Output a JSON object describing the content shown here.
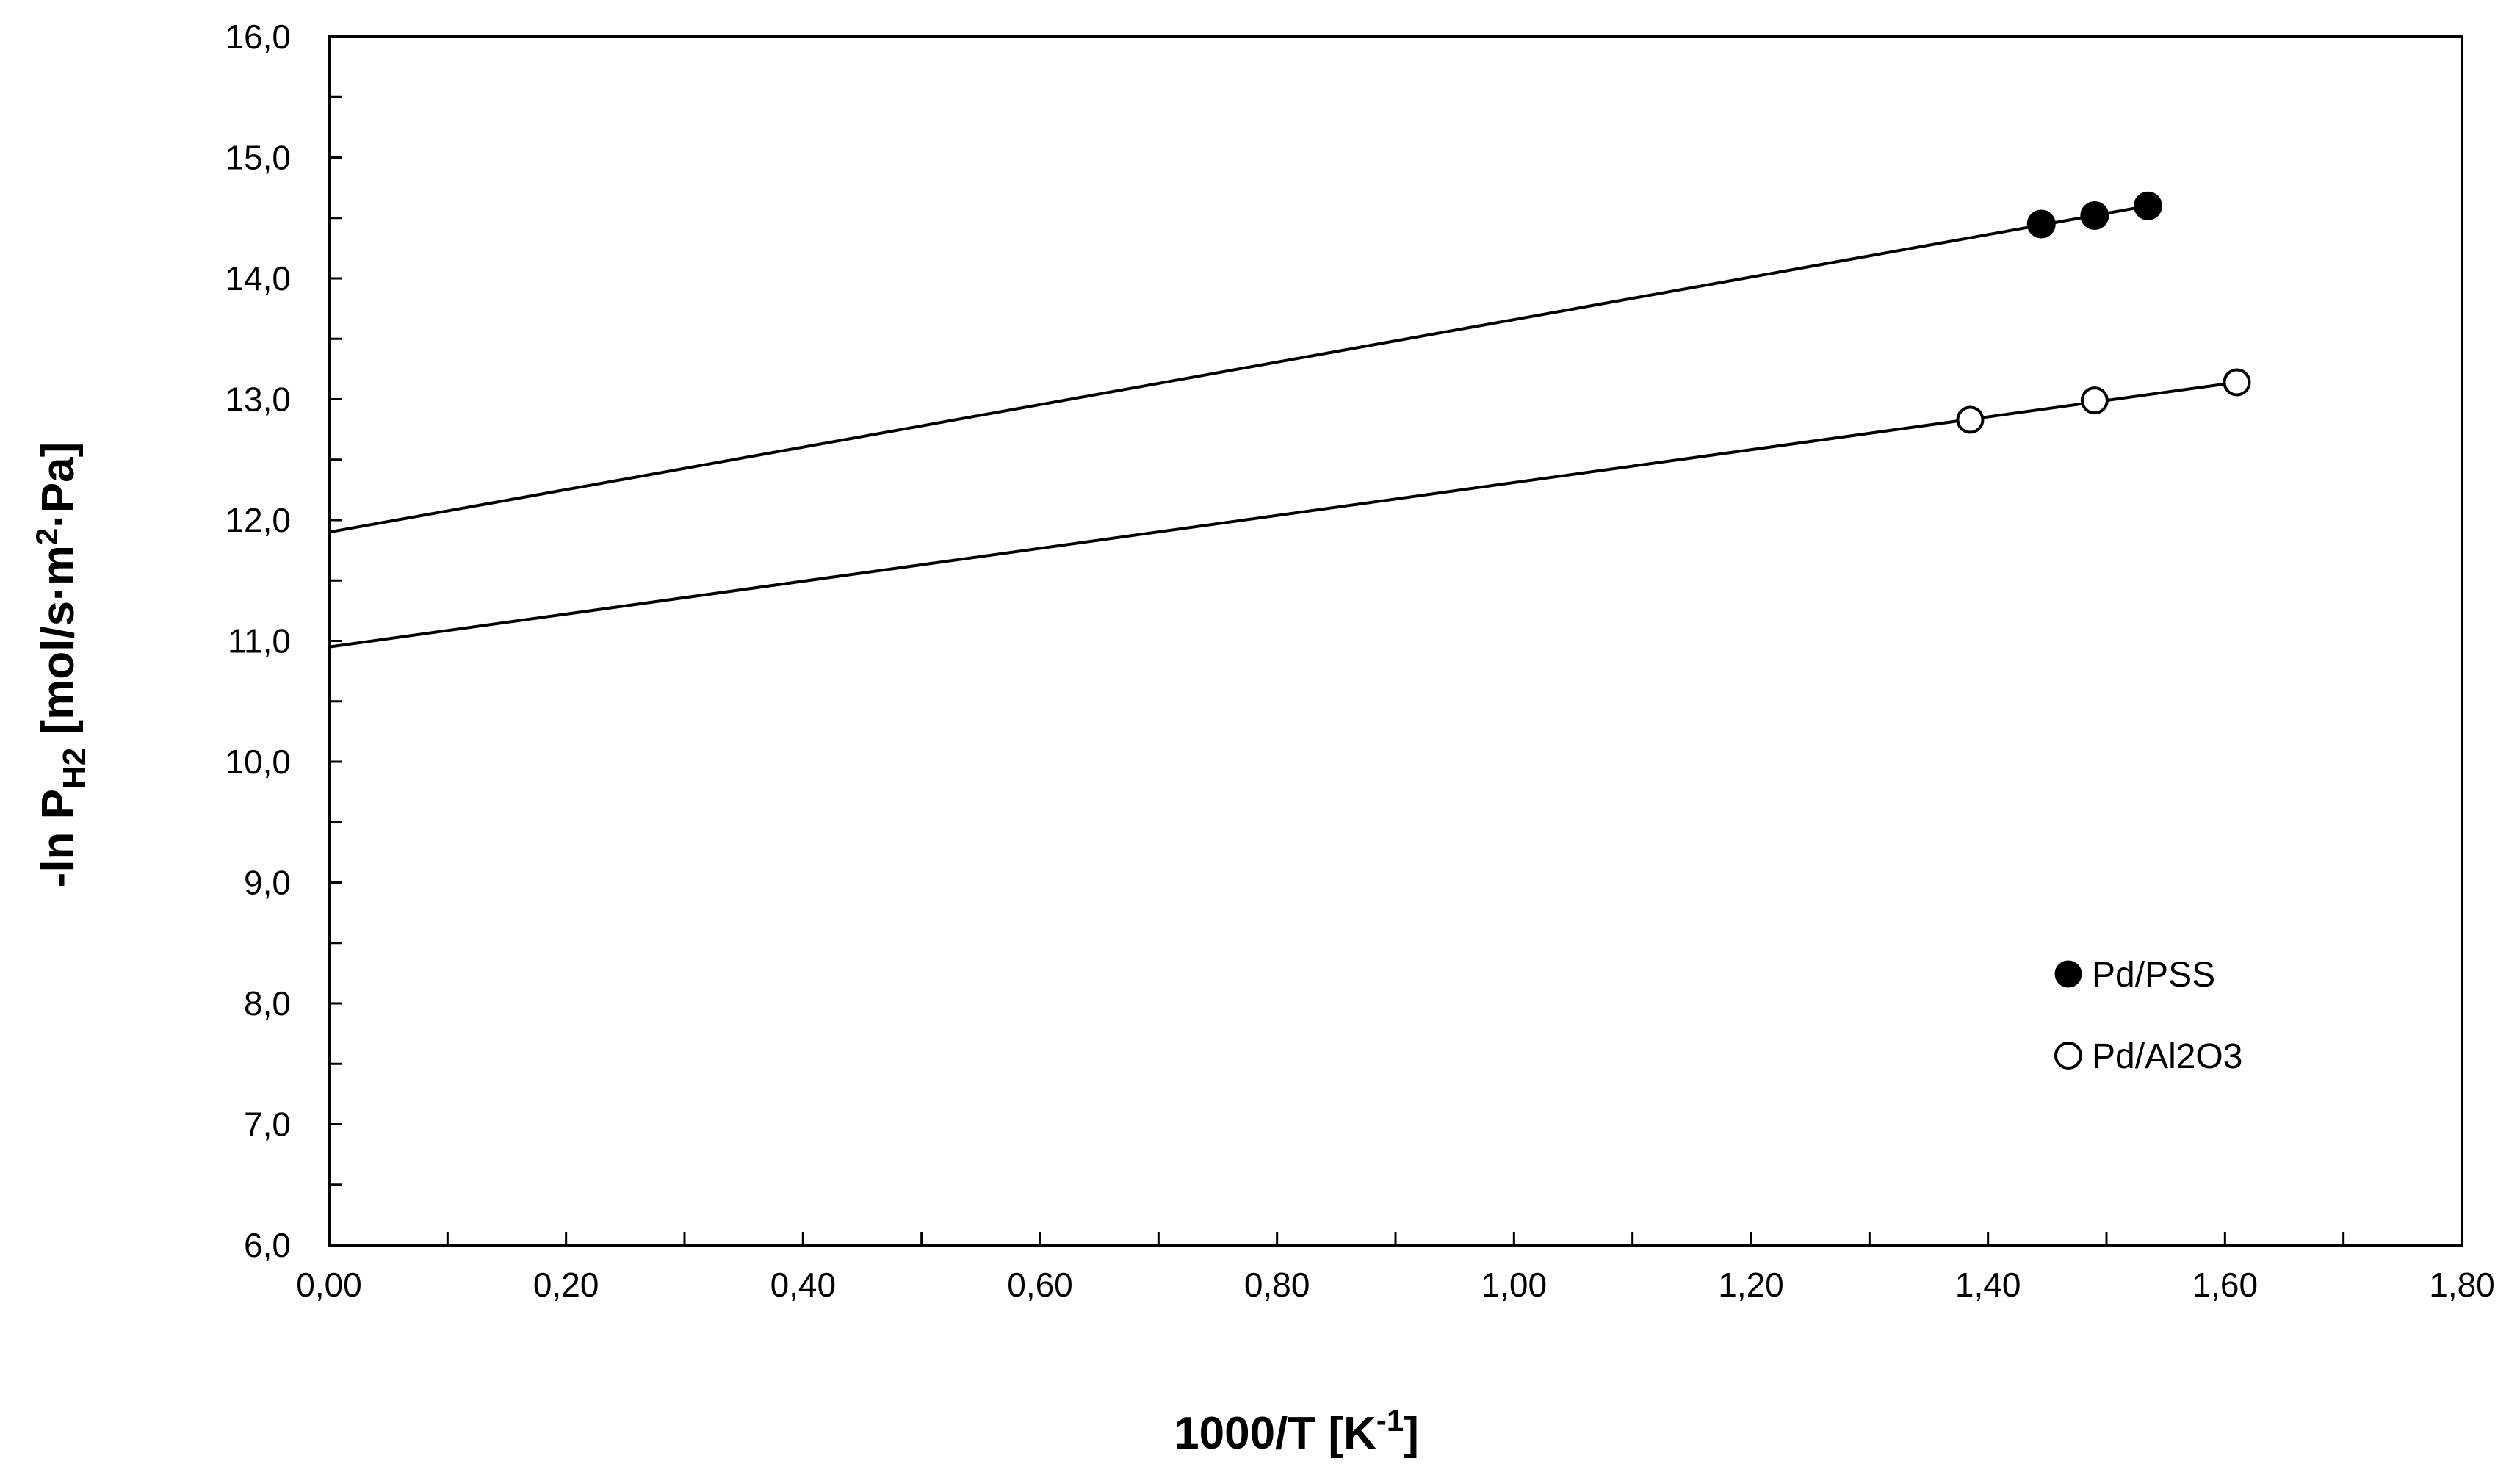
{
  "chart_data": {
    "type": "scatter",
    "xlabel": {
      "main": "1000/T [K",
      "sup": "-1",
      "end": "]"
    },
    "ylabel": {
      "a": "-ln P",
      "sub": "H2",
      "b": " [mol/s·m",
      "sup": "2",
      "c": "·Pa]"
    },
    "xlim": [
      0,
      1.8
    ],
    "ylim": [
      6,
      16
    ],
    "x_ticks": [
      "0,00",
      "0,20",
      "0,40",
      "0,60",
      "0,80",
      "1,00",
      "1,20",
      "1,40",
      "1,60",
      "1,80"
    ],
    "y_ticks": [
      "6,0",
      "7,0",
      "8,0",
      "9,0",
      "10,0",
      "11,0",
      "12,0",
      "13,0",
      "14,0",
      "15,0",
      "16,0"
    ],
    "grid": false,
    "legend_position": "bottom-right",
    "series": [
      {
        "name": "Pd/PSS",
        "marker": "filled-circle",
        "color": "#000000",
        "points": [
          [
            1.445,
            14.45
          ],
          [
            1.49,
            14.52
          ],
          [
            1.535,
            14.6
          ]
        ],
        "fit": {
          "x": [
            0,
            1.535
          ],
          "y": [
            11.9,
            14.6
          ]
        }
      },
      {
        "name": "Pd/Al2O3",
        "marker": "open-circle",
        "color": "#000000",
        "points": [
          [
            1.385,
            12.83
          ],
          [
            1.49,
            12.99
          ],
          [
            1.61,
            13.14
          ]
        ],
        "fit": {
          "x": [
            0,
            1.61
          ],
          "y": [
            10.95,
            13.14
          ]
        }
      }
    ]
  }
}
